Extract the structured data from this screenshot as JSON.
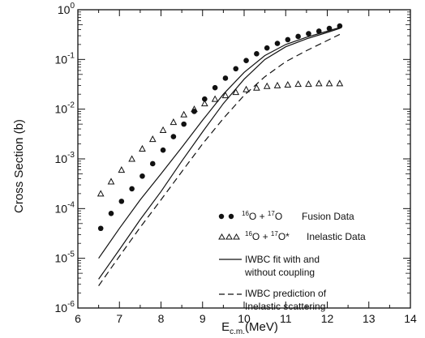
{
  "chart_data": {
    "type": "scatter",
    "title": "",
    "xlabel": "E",
    "xlabel_sub": "c.m.",
    "xlabel_unit": "(MeV)",
    "ylabel": "Cross Section (b)",
    "xlim": [
      6,
      14
    ],
    "ylim_log10": [
      -6,
      0
    ],
    "y_scale": "log",
    "x_ticks": [
      6,
      7,
      8,
      9,
      10,
      11,
      12,
      13,
      14
    ],
    "x_tick_labels": [
      "6",
      "7",
      "8",
      "9",
      "10",
      "11",
      "12",
      "13",
      "14"
    ],
    "y_ticks": [
      -6,
      -5,
      -4,
      -3,
      -2,
      -1,
      0
    ],
    "y_tick_base": "10",
    "y_tick_exponents": [
      "-6",
      "-5",
      "-4",
      "-3",
      "-2",
      "-1",
      "0"
    ],
    "legend_placement": "lower-right",
    "series": [
      {
        "name": "fusion",
        "marker": "filled-circle",
        "x": [
          6.55,
          6.8,
          7.05,
          7.3,
          7.55,
          7.8,
          8.05,
          8.3,
          8.55,
          8.8,
          9.05,
          9.3,
          9.55,
          9.8,
          10.05,
          10.3,
          10.55,
          10.8,
          11.05,
          11.3,
          11.55,
          11.8,
          12.05,
          12.3
        ],
        "y": [
          4e-05,
          8e-05,
          0.00014,
          0.00025,
          0.00045,
          0.0008,
          0.0015,
          0.0028,
          0.005,
          0.009,
          0.016,
          0.027,
          0.042,
          0.065,
          0.095,
          0.13,
          0.17,
          0.21,
          0.25,
          0.29,
          0.33,
          0.37,
          0.42,
          0.47
        ]
      },
      {
        "name": "inelastic",
        "marker": "open-triangle",
        "x": [
          6.55,
          6.8,
          7.05,
          7.3,
          7.55,
          7.8,
          8.05,
          8.3,
          8.55,
          8.8,
          9.05,
          9.3,
          9.55,
          9.8,
          10.05,
          10.3,
          10.55,
          10.8,
          11.05,
          11.3,
          11.55,
          11.8,
          12.05,
          12.3
        ],
        "y": [
          0.0002,
          0.00035,
          0.0006,
          0.001,
          0.0016,
          0.0025,
          0.0038,
          0.0055,
          0.0078,
          0.01,
          0.013,
          0.016,
          0.019,
          0.022,
          0.025,
          0.027,
          0.029,
          0.03,
          0.031,
          0.032,
          0.032,
          0.033,
          0.033,
          0.033
        ]
      },
      {
        "name": "iwbc-fit-with-coupling",
        "line": "solid",
        "x": [
          6.5,
          7,
          7.5,
          8,
          8.5,
          9,
          9.5,
          10,
          10.5,
          11,
          11.5,
          12,
          12.3
        ],
        "y": [
          1e-05,
          4e-05,
          0.00015,
          0.0005,
          0.0017,
          0.006,
          0.02,
          0.055,
          0.12,
          0.2,
          0.28,
          0.37,
          0.44
        ]
      },
      {
        "name": "iwbc-fit-without-coupling",
        "line": "solid",
        "x": [
          6.5,
          7,
          7.5,
          8,
          8.5,
          9,
          9.5,
          10,
          10.5,
          11,
          11.5,
          12,
          12.3
        ],
        "y": [
          3.8e-06,
          1.5e-05,
          6e-05,
          0.00022,
          0.0009,
          0.0035,
          0.013,
          0.04,
          0.1,
          0.18,
          0.26,
          0.35,
          0.42
        ]
      },
      {
        "name": "iwbc-inelastic-prediction",
        "line": "dashed",
        "x": [
          6.5,
          7,
          7.5,
          8,
          8.5,
          9,
          9.5,
          10,
          10.5,
          11,
          11.5,
          12,
          12.3
        ],
        "y": [
          2.8e-06,
          1.1e-05,
          4.2e-05,
          0.00015,
          0.00055,
          0.002,
          0.0065,
          0.019,
          0.045,
          0.09,
          0.15,
          0.24,
          0.32
        ]
      }
    ],
    "legend": [
      {
        "key": "fusion",
        "symbol": "filled-circle",
        "nucA": "16",
        "elA": "O + ",
        "nucB": "17",
        "elB": "O",
        "star": "",
        "desc": "Fusion Data"
      },
      {
        "key": "inelastic",
        "symbol": "open-triangle",
        "nucA": "16",
        "elA": "O + ",
        "nucB": "17",
        "elB": "O",
        "star": "*",
        "desc": "Inelastic Data"
      },
      {
        "key": "fit",
        "symbol": "solid-line",
        "line1": "IWBC fit with and",
        "line2": "without coupling"
      },
      {
        "key": "prediction",
        "symbol": "dashed-line",
        "line1": "IWBC prediction of",
        "line2": "Inelastic scattering"
      }
    ]
  }
}
